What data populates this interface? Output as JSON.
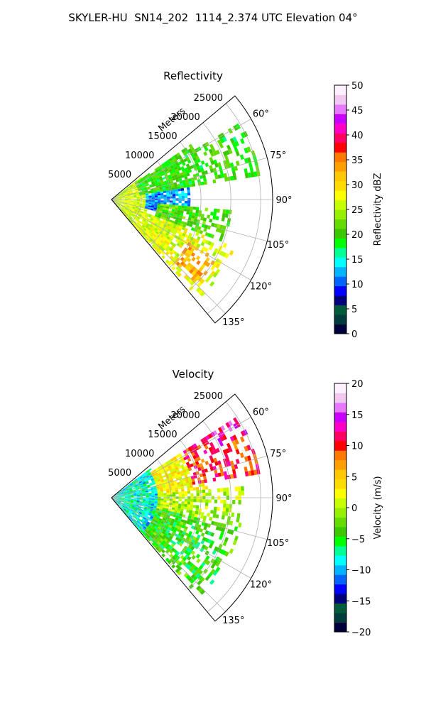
{
  "figure": {
    "suptitle": "SKYLER-HU  SN14_202  1114_2.374 UTC Elevation 04°"
  },
  "chart_data": [
    {
      "type": "heatmap",
      "subtype": "polar-sector-ppi",
      "title": "Reflectivity",
      "range_label": "Meters",
      "range_ticks": [
        5000,
        10000,
        15000,
        20000,
        25000
      ],
      "range_tick_labels": [
        "5000",
        "10000",
        "15000",
        "20000",
        "25000"
      ],
      "range_limit": [
        0,
        27000
      ],
      "azimuth_range_deg": [
        50,
        140
      ],
      "azimuth_ticks_deg": [
        60,
        75,
        90,
        105,
        120,
        135
      ],
      "azimuth_tick_labels": [
        "60°",
        "75°",
        "90°",
        "105°",
        "120°",
        "135°"
      ],
      "grid": true,
      "colorbar": {
        "label": "Reflectivity dBZ",
        "min": 0,
        "max": 50,
        "ticks": [
          0,
          5,
          10,
          15,
          20,
          25,
          30,
          35,
          40,
          45,
          50
        ],
        "tick_labels": [
          "0",
          "5",
          "10",
          "15",
          "20",
          "25",
          "30",
          "35",
          "40",
          "45",
          "50"
        ],
        "colors": [
          "#00003c",
          "#003c3c",
          "#005a3c",
          "#00007a",
          "#0000ff",
          "#0064ff",
          "#00b4ff",
          "#00ffff",
          "#00ff96",
          "#00ff00",
          "#3cc800",
          "#64dc00",
          "#96f000",
          "#c8ff00",
          "#ffff00",
          "#ffdc00",
          "#ffc800",
          "#ffa000",
          "#ff7800",
          "#ff0000",
          "#ff0064",
          "#ff00c8",
          "#c800ff",
          "#e878ff",
          "#f0c8f0",
          "#fff0ff"
        ]
      },
      "field_description": [
        {
          "azimuth_deg": [
            50,
            140
          ],
          "range_m": [
            0,
            6000
          ],
          "value": 26
        },
        {
          "azimuth_deg": [
            55,
            80
          ],
          "range_m": [
            5000,
            16000
          ],
          "value": 20
        },
        {
          "azimuth_deg": [
            60,
            80
          ],
          "range_m": [
            16000,
            25000
          ],
          "value": 20
        },
        {
          "azimuth_deg": [
            82,
            104
          ],
          "range_m": [
            6000,
            13000
          ],
          "value": 12
        },
        {
          "azimuth_deg": [
            95,
            115
          ],
          "range_m": [
            8000,
            20000
          ],
          "value": 21
        },
        {
          "azimuth_deg": [
            112,
            138
          ],
          "range_m": [
            6000,
            22000
          ],
          "value": 27
        },
        {
          "azimuth_deg": [
            120,
            134
          ],
          "range_m": [
            15000,
            20000
          ],
          "value": 33
        }
      ]
    },
    {
      "type": "heatmap",
      "subtype": "polar-sector-ppi",
      "title": "Velocity",
      "range_label": "Meters",
      "range_ticks": [
        5000,
        10000,
        15000,
        20000,
        25000
      ],
      "range_tick_labels": [
        "5000",
        "10000",
        "15000",
        "20000",
        "25000"
      ],
      "range_limit": [
        0,
        27000
      ],
      "azimuth_range_deg": [
        50,
        140
      ],
      "azimuth_ticks_deg": [
        60,
        75,
        90,
        105,
        120,
        135
      ],
      "azimuth_tick_labels": [
        "60°",
        "75°",
        "90°",
        "105°",
        "120°",
        "135°"
      ],
      "grid": true,
      "colorbar": {
        "label": "Velocity (m/s)",
        "min": -20,
        "max": 20,
        "ticks": [
          -20,
          -15,
          -10,
          -5,
          0,
          5,
          10,
          15,
          20
        ],
        "tick_labels": [
          "−20",
          "−15",
          "−10",
          "−5",
          "0",
          "5",
          "10",
          "15",
          "20"
        ],
        "colors": [
          "#00003c",
          "#003c3c",
          "#005a3c",
          "#00007a",
          "#0000ff",
          "#0064ff",
          "#00b4ff",
          "#00ffff",
          "#00ff96",
          "#00ff00",
          "#3cc800",
          "#64dc00",
          "#96f000",
          "#c8ff00",
          "#ffff00",
          "#ffdc00",
          "#ffc800",
          "#ffa000",
          "#ff7800",
          "#ff0000",
          "#ff0064",
          "#ff00c8",
          "#c800ff",
          "#e878ff",
          "#f0c8f0",
          "#fff0ff"
        ]
      },
      "field_description": [
        {
          "azimuth_deg": [
            50,
            140
          ],
          "range_m": [
            0,
            8000
          ],
          "value": -8
        },
        {
          "azimuth_deg": [
            58,
            86
          ],
          "range_m": [
            8000,
            16000
          ],
          "value": 3
        },
        {
          "azimuth_deg": [
            58,
            80
          ],
          "range_m": [
            14000,
            25000
          ],
          "value": 10
        },
        {
          "azimuth_deg": [
            58,
            64
          ],
          "range_m": [
            20000,
            25000
          ],
          "value": 13
        },
        {
          "azimuth_deg": [
            86,
            104
          ],
          "range_m": [
            8000,
            22000
          ],
          "value": 0
        },
        {
          "azimuth_deg": [
            104,
            138
          ],
          "range_m": [
            8000,
            22000
          ],
          "value": -4
        }
      ]
    }
  ]
}
